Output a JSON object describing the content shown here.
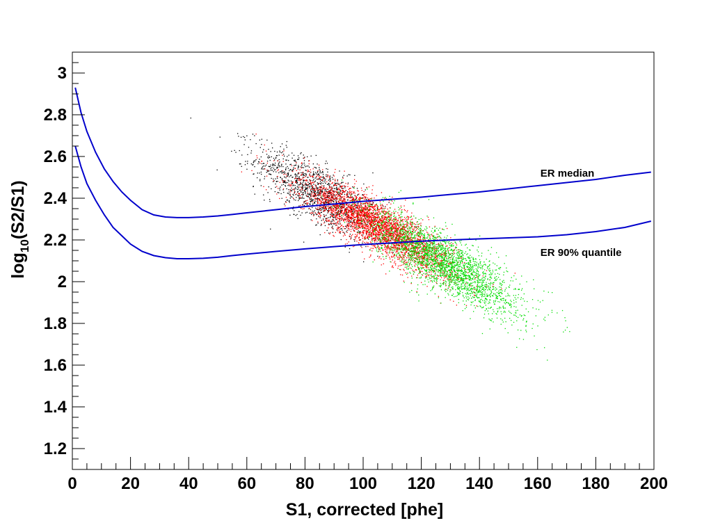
{
  "chart_data": {
    "type": "scatter",
    "title": "",
    "xlabel": "S1, corrected [phe]",
    "ylabel_parts": {
      "pre": "log",
      "sub": "10",
      "post": "(S2/S1)"
    },
    "xlim": [
      0,
      200
    ],
    "ylim": [
      1.1,
      3.1
    ],
    "x_ticks": [
      0,
      20,
      40,
      60,
      80,
      100,
      120,
      140,
      160,
      180,
      200
    ],
    "y_ticks": [
      1.2,
      1.4,
      1.6,
      1.8,
      2,
      2.2,
      2.4,
      2.6,
      2.8,
      3
    ],
    "x_tick_labels": [
      "0",
      "20",
      "40",
      "60",
      "80",
      "100",
      "120",
      "140",
      "160",
      "180",
      "200"
    ],
    "y_tick_labels": [
      "1.2",
      "1.4",
      "1.6",
      "1.8",
      "2",
      "2.2",
      "2.4",
      "2.6",
      "2.8",
      "3"
    ],
    "grid": false,
    "curves": [
      {
        "label": "ER median",
        "color": "#0000cc",
        "x": [
          1,
          3,
          5,
          8,
          11,
          14,
          17,
          20,
          24,
          28,
          32,
          36,
          40,
          45,
          50,
          55,
          60,
          70,
          80,
          90,
          100,
          110,
          120,
          130,
          140,
          150,
          160,
          170,
          180,
          190,
          199
        ],
        "y": [
          2.93,
          2.81,
          2.72,
          2.62,
          2.54,
          2.48,
          2.43,
          2.39,
          2.345,
          2.32,
          2.31,
          2.307,
          2.307,
          2.31,
          2.315,
          2.322,
          2.33,
          2.345,
          2.36,
          2.372,
          2.385,
          2.395,
          2.405,
          2.418,
          2.43,
          2.445,
          2.46,
          2.475,
          2.49,
          2.51,
          2.525
        ]
      },
      {
        "label": "ER 90% quantile",
        "color": "#0000cc",
        "x": [
          1,
          3,
          5,
          8,
          11,
          14,
          17,
          20,
          24,
          28,
          32,
          36,
          40,
          45,
          50,
          55,
          60,
          70,
          80,
          90,
          100,
          110,
          120,
          130,
          140,
          150,
          160,
          170,
          180,
          190,
          199
        ],
        "y": [
          2.65,
          2.55,
          2.47,
          2.39,
          2.32,
          2.26,
          2.22,
          2.18,
          2.145,
          2.125,
          2.115,
          2.11,
          2.11,
          2.112,
          2.117,
          2.125,
          2.132,
          2.145,
          2.157,
          2.168,
          2.178,
          2.186,
          2.194,
          2.2,
          2.205,
          2.21,
          2.215,
          2.225,
          2.24,
          2.26,
          2.29
        ]
      }
    ],
    "annotations": [
      {
        "text": "ER median",
        "x": 160,
        "y": 2.52
      },
      {
        "text": "ER 90% quantile",
        "x": 160,
        "y": 2.14
      }
    ],
    "scatter_populations": [
      {
        "name": "",
        "color": "#000000",
        "center": [
          85,
          2.42
        ],
        "spread_x": 11,
        "spread_y": 0.07,
        "slope": -0.0075,
        "count": 1400,
        "note_region": "above ER median"
      },
      {
        "name": "",
        "color": "#ff0000",
        "center": [
          105,
          2.265
        ],
        "spread_x": 13,
        "spread_y": 0.06,
        "slope": -0.0075,
        "count": 3500,
        "note_region": "between curves"
      },
      {
        "name": "",
        "color": "#00dd00",
        "center": [
          128,
          2.09
        ],
        "spread_x": 13,
        "spread_y": 0.07,
        "slope": -0.0075,
        "count": 2600,
        "note_region": "below ER 90% quantile"
      }
    ]
  }
}
